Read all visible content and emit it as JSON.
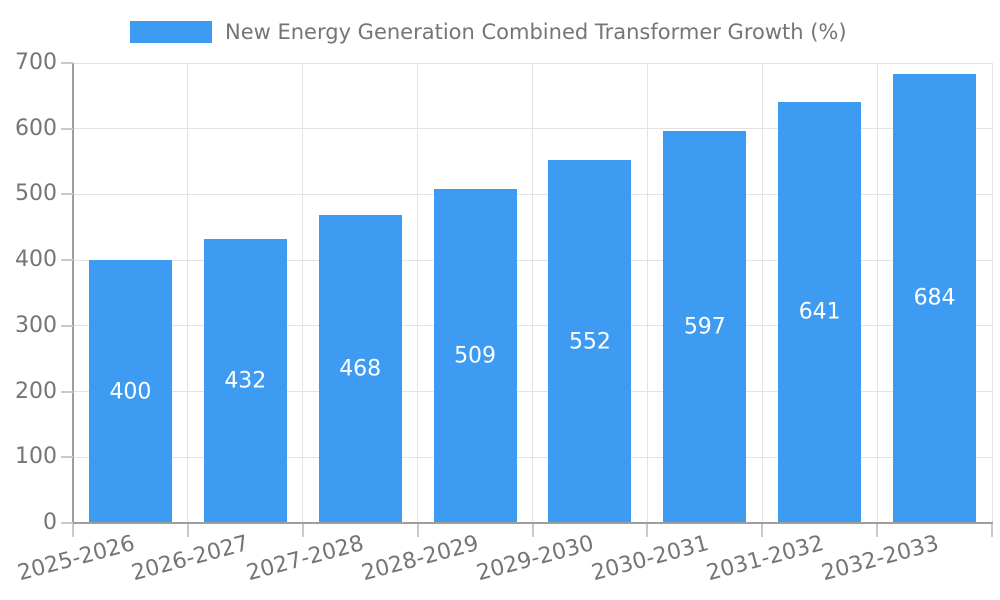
{
  "chart_data": {
    "type": "bar",
    "title": "New Energy Generation Combined Transformer Growth (%)",
    "legend": {
      "position": "top",
      "entries": [
        "New Energy Generation Combined Transformer Growth (%)"
      ]
    },
    "categories": [
      "2025-2026",
      "2026-2027",
      "2027-2028",
      "2028-2029",
      "2029-2030",
      "2030-2031",
      "2031-2032",
      "2032-2033"
    ],
    "values": [
      400,
      432,
      468,
      509,
      552,
      597,
      641,
      684
    ],
    "series": [
      {
        "name": "New Energy Generation Combined Transformer Growth (%)",
        "values": [
          400,
          432,
          468,
          509,
          552,
          597,
          641,
          684
        ]
      }
    ],
    "xlabel": "",
    "ylabel": "",
    "ylim": [
      0,
      700
    ],
    "yticks": [
      0,
      100,
      200,
      300,
      400,
      500,
      600,
      700
    ],
    "grid": true,
    "bar_labels_shown": true,
    "x_label_rotation_deg": -15,
    "colors": {
      "bar": "#3d9cf2",
      "bar_label": "#ffffff",
      "axis": "#9e9e9e",
      "tick": "#c9c9c9",
      "gridline": "#e3e3e3",
      "text": "#757575",
      "background": "#ffffff"
    }
  }
}
